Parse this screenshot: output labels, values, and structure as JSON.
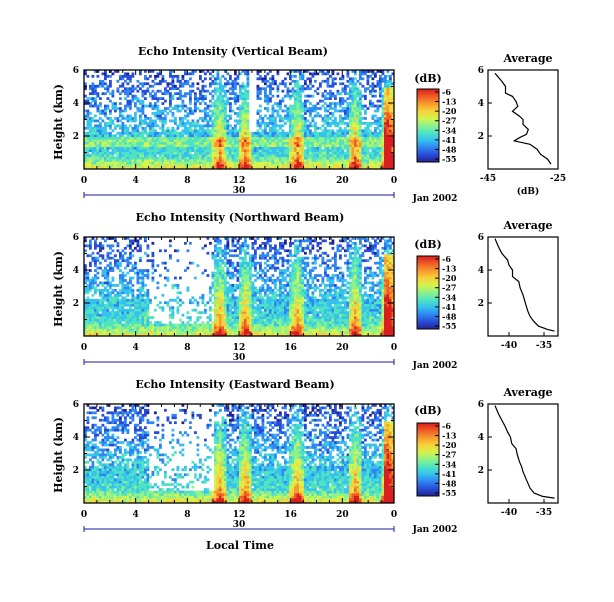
{
  "figure": {
    "bottom_xlabel": "Local Time",
    "date_label": "Jan 2002",
    "colorbar_unit": "(dB)",
    "average_title": "Average",
    "average_xlabel": "(dB)",
    "height_label": "Height (km)"
  },
  "colormap": [
    "#23238e",
    "#2a4bd7",
    "#2f86f0",
    "#35c2ef",
    "#4fe3c2",
    "#8ef28a",
    "#d6f24c",
    "#f7d13a",
    "#f79a2e",
    "#ef5a25",
    "#d81f1f"
  ],
  "chart_data": [
    {
      "type": "heatmap",
      "title": "Echo Intensity (Vertical Beam)",
      "ylabel": "Height (km)",
      "x_ticks": [
        "0",
        "4",
        "8",
        "12",
        "16",
        "20",
        "0"
      ],
      "date_ticks": [
        "30"
      ],
      "y_ticks": [
        "6",
        "4",
        "2"
      ],
      "xlim": [
        0,
        24
      ],
      "ylim": [
        0,
        6
      ],
      "colorbar_ticks": [
        "-6",
        "-13",
        "-20",
        "-27",
        "-34",
        "-41",
        "-48",
        "-55"
      ],
      "colorbar_range": [
        -55,
        -6
      ],
      "convective_cells_hours": [
        10.5,
        12.5,
        16.5,
        21.0,
        23.5
      ],
      "average_profile": {
        "xlim": [
          -45,
          -25
        ],
        "x_ticks": [
          "-45",
          "-25"
        ],
        "y_ticks": [
          "6",
          "4",
          "2"
        ],
        "points": [
          [
            -43,
            5.8
          ],
          [
            -41,
            5.3
          ],
          [
            -40,
            5.0
          ],
          [
            -40,
            4.6
          ],
          [
            -38,
            4.4
          ],
          [
            -37,
            4.1
          ],
          [
            -36.5,
            3.8
          ],
          [
            -38,
            3.5
          ],
          [
            -36,
            3.2
          ],
          [
            -35,
            3.0
          ],
          [
            -35,
            2.7
          ],
          [
            -33.5,
            2.4
          ],
          [
            -34,
            2.1
          ],
          [
            -36,
            1.9
          ],
          [
            -37.5,
            1.7
          ],
          [
            -33,
            1.5
          ],
          [
            -31,
            1.2
          ],
          [
            -30,
            0.9
          ],
          [
            -28,
            0.6
          ],
          [
            -27,
            0.3
          ]
        ]
      }
    },
    {
      "type": "heatmap",
      "title": "Echo Intensity (Northward Beam)",
      "ylabel": "Height (km)",
      "x_ticks": [
        "0",
        "4",
        "8",
        "12",
        "16",
        "20",
        "0"
      ],
      "date_ticks": [
        "30"
      ],
      "y_ticks": [
        "6",
        "4",
        "2"
      ],
      "xlim": [
        0,
        24
      ],
      "ylim": [
        0,
        6
      ],
      "colorbar_ticks": [
        "-6",
        "-13",
        "-20",
        "-27",
        "-34",
        "-41",
        "-48",
        "-55"
      ],
      "colorbar_range": [
        -55,
        -6
      ],
      "convective_cells_hours": [
        10.5,
        12.5,
        16.5,
        21.0,
        23.5
      ],
      "average_profile": {
        "xlim": [
          -43,
          -33
        ],
        "x_ticks": [
          "-40",
          "-35"
        ],
        "y_ticks": [
          "6",
          "4",
          "2"
        ],
        "points": [
          [
            -42,
            5.9
          ],
          [
            -41.5,
            5.4
          ],
          [
            -41,
            5.0
          ],
          [
            -40.2,
            4.6
          ],
          [
            -40,
            4.3
          ],
          [
            -39.5,
            4.0
          ],
          [
            -39.5,
            3.6
          ],
          [
            -38.6,
            3.3
          ],
          [
            -38.4,
            2.9
          ],
          [
            -38,
            2.5
          ],
          [
            -37.8,
            2.2
          ],
          [
            -37.6,
            1.9
          ],
          [
            -37.3,
            1.5
          ],
          [
            -37,
            1.2
          ],
          [
            -36.5,
            0.9
          ],
          [
            -35.8,
            0.6
          ],
          [
            -34.5,
            0.4
          ],
          [
            -33.5,
            0.3
          ]
        ]
      }
    },
    {
      "type": "heatmap",
      "title": "Echo Intensity (Eastward Beam)",
      "ylabel": "Height (km)",
      "x_ticks": [
        "0",
        "4",
        "8",
        "12",
        "16",
        "20",
        "0"
      ],
      "date_ticks": [
        "30"
      ],
      "y_ticks": [
        "6",
        "4",
        "2"
      ],
      "xlim": [
        0,
        24
      ],
      "ylim": [
        0,
        6
      ],
      "colorbar_ticks": [
        "-6",
        "-13",
        "-20",
        "-27",
        "-34",
        "-41",
        "-48",
        "-55"
      ],
      "colorbar_range": [
        -55,
        -6
      ],
      "convective_cells_hours": [
        10.5,
        12.5,
        16.5,
        21.0,
        23.5
      ],
      "average_profile": {
        "xlim": [
          -43,
          -33
        ],
        "x_ticks": [
          "-40",
          "-35"
        ],
        "y_ticks": [
          "6",
          "4",
          "2"
        ],
        "points": [
          [
            -42,
            5.9
          ],
          [
            -41.5,
            5.4
          ],
          [
            -41,
            5.0
          ],
          [
            -40.5,
            4.6
          ],
          [
            -40.2,
            4.3
          ],
          [
            -39.8,
            4.0
          ],
          [
            -39.6,
            3.6
          ],
          [
            -39,
            3.3
          ],
          [
            -38.8,
            2.9
          ],
          [
            -38.5,
            2.5
          ],
          [
            -38.2,
            2.2
          ],
          [
            -38,
            1.9
          ],
          [
            -37.6,
            1.5
          ],
          [
            -37.3,
            1.2
          ],
          [
            -37,
            0.9
          ],
          [
            -36.4,
            0.6
          ],
          [
            -35.2,
            0.4
          ],
          [
            -33.5,
            0.3
          ]
        ]
      }
    }
  ]
}
